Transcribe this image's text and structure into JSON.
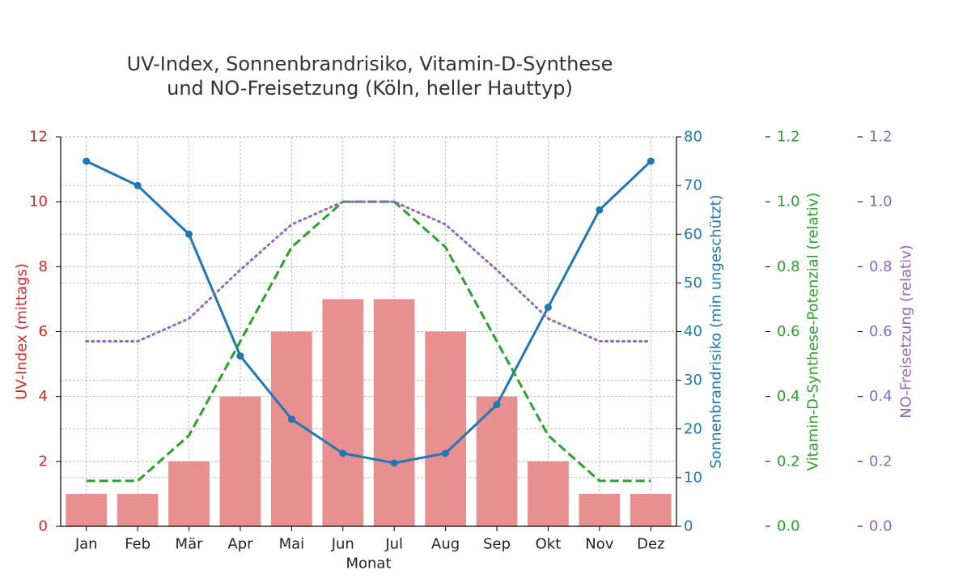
{
  "chart_data": {
    "type": "bar",
    "title_lines": [
      "UV-Index, Sonnenbrandrisiko, Vitamin-D-Synthese",
      "und NO-Freisetzung (Köln, heller Hauttyp)"
    ],
    "xlabel": "Monat",
    "categories": [
      "Jan",
      "Feb",
      "Mär",
      "Apr",
      "Mai",
      "Jun",
      "Jul",
      "Aug",
      "Sep",
      "Okt",
      "Nov",
      "Dez"
    ],
    "axes": {
      "uv": {
        "label": "UV-Index (mittags)",
        "ylim": [
          0,
          12
        ],
        "ticks": [
          0,
          2,
          4,
          6,
          8,
          10,
          12
        ],
        "color": "#d62728"
      },
      "burn": {
        "label": "Sonnenbrandrisiko (min ungeschützt)",
        "ylim": [
          0,
          80
        ],
        "ticks": [
          0,
          10,
          20,
          30,
          40,
          50,
          60,
          70,
          80
        ],
        "color": "#1f77b4"
      },
      "vitd": {
        "label": "Vitamin-D-Synthese-Potenzial (relativ)",
        "ylim": [
          0,
          1.2
        ],
        "ticks": [
          "0.0",
          "0.2",
          "0.4",
          "0.6",
          "0.8",
          "1.0",
          "1.2"
        ],
        "color": "#2ca02c"
      },
      "no": {
        "label": "NO-Freisetzung (relativ)",
        "ylim": [
          0,
          1.2
        ],
        "ticks": [
          "0.0",
          "0.2",
          "0.4",
          "0.6",
          "0.8",
          "1.0",
          "1.2"
        ],
        "color": "#9467bd"
      }
    },
    "series": [
      {
        "axis": "uv",
        "kind": "bar",
        "color": "#e88f8f",
        "values": [
          1,
          1,
          2,
          4,
          6,
          7,
          7,
          6,
          4,
          2,
          1,
          1
        ]
      },
      {
        "axis": "burn",
        "kind": "line-marker",
        "color": "#1f77b4",
        "values": [
          75,
          70,
          60,
          35,
          22,
          15,
          13,
          15,
          25,
          45,
          65,
          75
        ]
      },
      {
        "axis": "vitd",
        "kind": "dashed",
        "color": "#2ca02c",
        "values": [
          0.14,
          0.14,
          0.28,
          0.57,
          0.86,
          1.0,
          1.0,
          0.86,
          0.57,
          0.28,
          0.14,
          0.14
        ]
      },
      {
        "axis": "no",
        "kind": "dotted",
        "color": "#9467bd",
        "values": [
          0.57,
          0.57,
          0.64,
          0.79,
          0.93,
          1.0,
          1.0,
          0.93,
          0.79,
          0.64,
          0.57,
          0.57
        ]
      }
    ],
    "grid": true
  }
}
